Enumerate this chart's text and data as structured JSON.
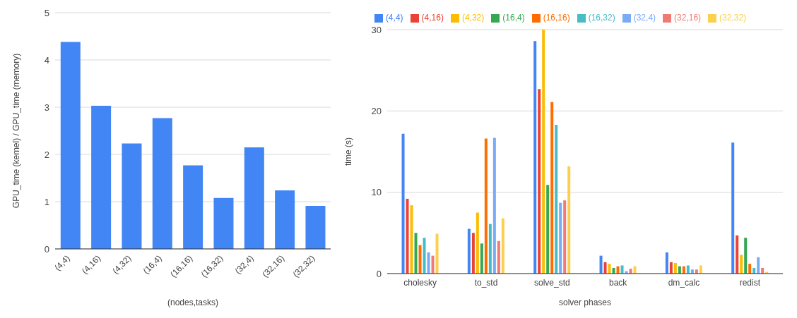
{
  "chart_data": [
    {
      "type": "bar",
      "xlabel": "(nodes,tasks)",
      "ylabel": "GPU_time (kernel) / GPU_time (memory)",
      "categories": [
        "(4,4)",
        "(4,16)",
        "(4,32)",
        "(16,4)",
        "(16,16)",
        "(16,32)",
        "(32,4)",
        "(32,16)",
        "(32,32)"
      ],
      "values": [
        4.38,
        3.03,
        2.23,
        2.77,
        1.77,
        1.08,
        2.15,
        1.24,
        0.91
      ],
      "color": "#4285f4",
      "ylim": [
        0,
        5
      ],
      "yticks": [
        0,
        1,
        2,
        3,
        4,
        5
      ],
      "grid": "y",
      "legend": false
    },
    {
      "type": "bar",
      "xlabel": "solver phases",
      "ylabel": "time (s)",
      "categories": [
        "cholesky",
        "to_std",
        "solve_std",
        "back",
        "dm_calc",
        "redist"
      ],
      "series": [
        {
          "name": "(4,4)",
          "color": "#4285f4",
          "values": [
            17.2,
            5.5,
            28.6,
            2.2,
            2.6,
            16.1
          ]
        },
        {
          "name": "(4,16)",
          "color": "#ea4335",
          "values": [
            9.2,
            5.0,
            22.7,
            1.4,
            1.4,
            4.7
          ]
        },
        {
          "name": "(4,32)",
          "color": "#fbbc04",
          "values": [
            8.4,
            7.5,
            30.0,
            1.2,
            1.3,
            2.3
          ]
        },
        {
          "name": "(16,4)",
          "color": "#34a853",
          "values": [
            5.0,
            3.7,
            10.9,
            0.7,
            0.9,
            4.4
          ]
        },
        {
          "name": "(16,16)",
          "color": "#ff6d01",
          "values": [
            3.5,
            16.6,
            21.1,
            0.9,
            0.9,
            1.2
          ]
        },
        {
          "name": "(16,32)",
          "color": "#46bdc6",
          "values": [
            4.4,
            6.1,
            18.3,
            1.0,
            1.0,
            0.7
          ]
        },
        {
          "name": "(32,4)",
          "color": "#7baaf7",
          "values": [
            2.6,
            16.7,
            8.7,
            0.3,
            0.5,
            2.0
          ]
        },
        {
          "name": "(32,16)",
          "color": "#f07b72",
          "values": [
            2.2,
            4.0,
            9.0,
            0.6,
            0.5,
            0.7
          ]
        },
        {
          "name": "(32,32)",
          "color": "#fcd04f",
          "values": [
            4.9,
            6.8,
            13.2,
            0.9,
            1.0,
            0.2
          ]
        }
      ],
      "ylim": [
        0,
        30
      ],
      "yticks": [
        0,
        10,
        20,
        30
      ],
      "grid": "y",
      "legend": "top"
    }
  ]
}
